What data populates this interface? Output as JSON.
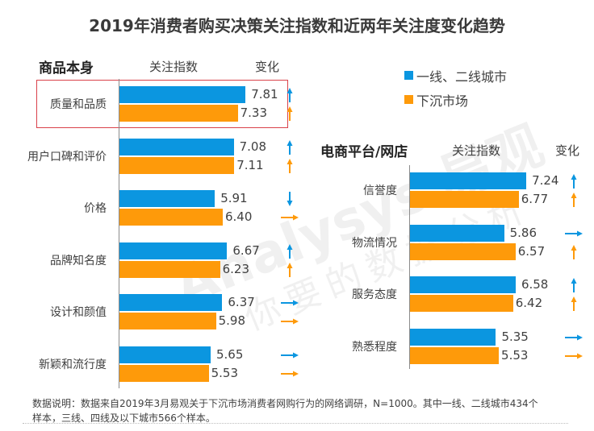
{
  "title": "2019年消费者购买决策关注指数和近两年关注度变化趋势",
  "colors": {
    "first_second_tier": "#0b96e0",
    "lower_tier": "#fe9a0a",
    "highlight_border": "#d9414a"
  },
  "legend": [
    {
      "label": "一线、二线城市",
      "color": "#0b96e0"
    },
    {
      "label": "下沉市场",
      "color": "#fe9a0a"
    }
  ],
  "watermark": {
    "brand": "Analysys 易观",
    "slogan": "你要的数据分析"
  },
  "note": {
    "line1": "数据说明：数据来自2019年3月易观关于下沉市场消费者网购行为的网络调研，N=1000。其中一线、二线城市434个",
    "line2": "样本，三线、四线及以下城市566个样本。"
  },
  "chart_data": [
    {
      "type": "bar",
      "orientation": "horizontal",
      "title": "商品本身",
      "value_header": "关注指数",
      "change_header": "变化",
      "highlighted_category": "质量和品质",
      "categories": [
        "质量和品质",
        "用户口碑和评价",
        "价格",
        "品牌知名度",
        "设计和颜值",
        "新颖和流行度"
      ],
      "series": [
        {
          "name": "一线、二线城市",
          "values": [
            7.81,
            7.08,
            5.91,
            6.67,
            6.37,
            5.65
          ],
          "change": [
            "up",
            "up",
            "down",
            "up",
            "flat",
            "flat"
          ]
        },
        {
          "name": "下沉市场",
          "values": [
            7.33,
            7.11,
            6.4,
            6.23,
            5.98,
            5.53
          ],
          "change": [
            "up",
            "up",
            "flat",
            "up",
            "flat",
            "flat"
          ]
        }
      ],
      "xlim": [
        0,
        8
      ]
    },
    {
      "type": "bar",
      "orientation": "horizontal",
      "title": "电商平台/网店",
      "value_header": "关注指数",
      "change_header": "变化",
      "categories": [
        "信誉度",
        "物流情况",
        "服务态度",
        "熟悉程度"
      ],
      "series": [
        {
          "name": "一线、二线城市",
          "values": [
            7.24,
            5.86,
            6.58,
            5.35
          ],
          "change": [
            "up",
            "flat",
            "up",
            "flat"
          ]
        },
        {
          "name": "下沉市场",
          "values": [
            6.77,
            6.57,
            6.42,
            5.53
          ],
          "change": [
            "up",
            "up",
            "up",
            "flat"
          ]
        }
      ],
      "xlim": [
        0,
        8
      ]
    }
  ]
}
